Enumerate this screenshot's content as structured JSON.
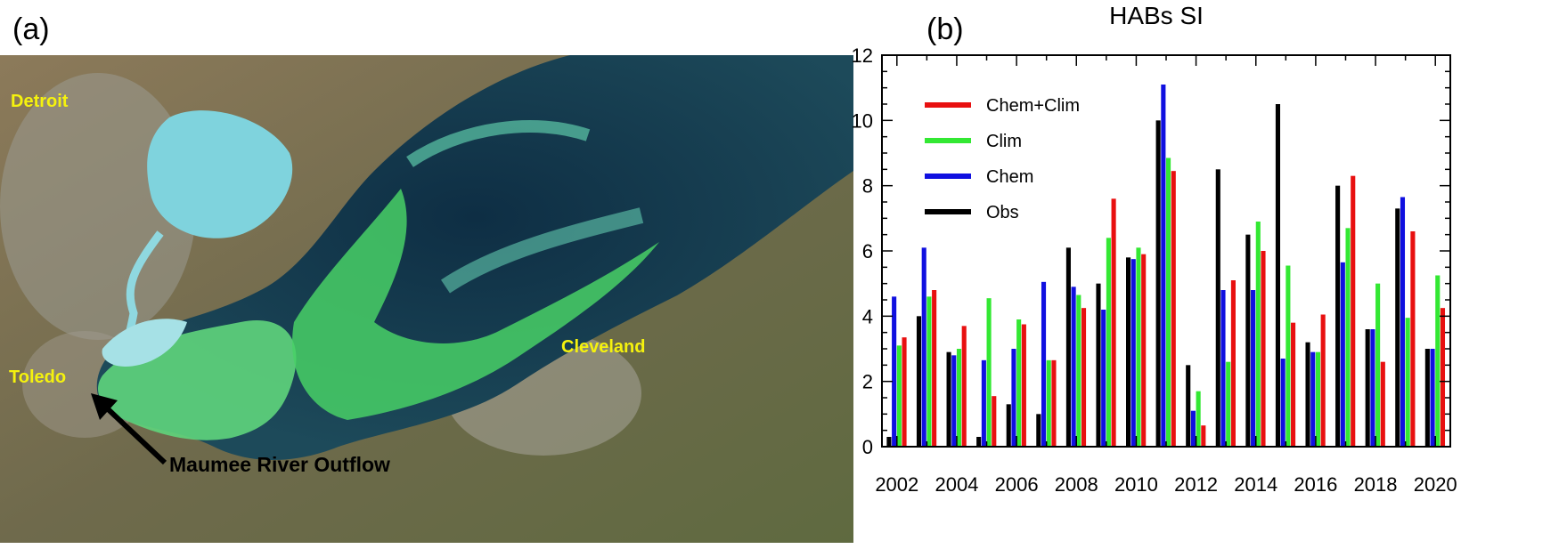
{
  "panels": {
    "a_label": "(a)",
    "b_label": "(b)"
  },
  "map": {
    "cities": {
      "detroit": "Detroit",
      "toledo": "Toledo",
      "cleveland": "Cleveland"
    },
    "annotation": "Maumee River Outflow",
    "colors": {
      "land": "#7a6a4e",
      "lake_deep": "#16384a",
      "bloom": "#4fd06a",
      "turquoise": "#8fd8e0",
      "label": "#f5f20e"
    }
  },
  "chart_data": {
    "type": "bar",
    "title": "HABs SI",
    "xlabel": "",
    "ylabel": "",
    "categories": [
      "2002",
      "2003",
      "2004",
      "2005",
      "2006",
      "2007",
      "2008",
      "2009",
      "2010",
      "2011",
      "2012",
      "2013",
      "2014",
      "2015",
      "2016",
      "2017",
      "2018",
      "2019",
      "2020"
    ],
    "x_tick_labels": [
      "2002",
      "2004",
      "2006",
      "2008",
      "2010",
      "2012",
      "2014",
      "2016",
      "2018",
      "2020"
    ],
    "ylim": [
      0,
      12
    ],
    "y_ticks": [
      0,
      2,
      4,
      6,
      8,
      10,
      12
    ],
    "series": [
      {
        "name": "Obs",
        "color": "#000000",
        "values": [
          0.3,
          4.0,
          2.9,
          0.3,
          1.3,
          1.0,
          6.1,
          5.0,
          5.8,
          10.0,
          2.5,
          8.5,
          6.5,
          10.5,
          3.2,
          8.0,
          3.6,
          7.3,
          3.0
        ]
      },
      {
        "name": "Chem",
        "color": "#1010e0",
        "values": [
          4.6,
          6.1,
          2.8,
          2.65,
          3.0,
          5.05,
          4.9,
          4.2,
          5.75,
          11.1,
          1.1,
          4.8,
          4.8,
          2.7,
          2.9,
          5.65,
          3.6,
          7.65,
          3.0
        ]
      },
      {
        "name": "Clim",
        "color": "#33e833",
        "values": [
          3.1,
          4.6,
          3.0,
          4.55,
          3.9,
          2.65,
          4.65,
          6.4,
          6.1,
          8.85,
          1.7,
          2.6,
          6.9,
          5.55,
          2.9,
          6.7,
          5.0,
          3.95,
          5.25
        ]
      },
      {
        "name": "Chem+Clim",
        "color": "#e81010",
        "values": [
          3.35,
          4.8,
          3.7,
          1.55,
          3.75,
          2.65,
          4.25,
          7.6,
          5.9,
          8.45,
          0.65,
          5.1,
          6.0,
          3.8,
          4.05,
          8.3,
          2.6,
          6.6,
          4.25
        ]
      }
    ],
    "legend_order": [
      "Chem+Clim",
      "Clim",
      "Chem",
      "Obs"
    ],
    "legend_position": "top-left",
    "grid": false
  }
}
